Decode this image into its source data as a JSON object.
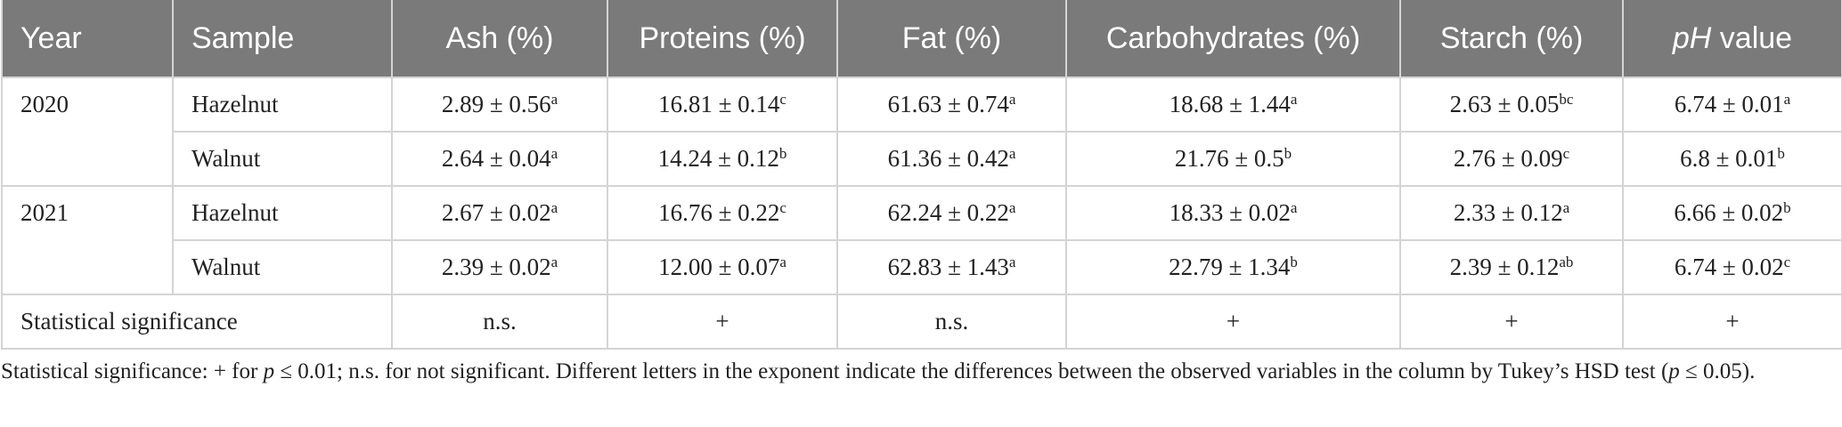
{
  "table": {
    "headers": {
      "year": "Year",
      "sample": "Sample",
      "ash": "Ash (%)",
      "proteins": "Proteins (%)",
      "fat": "Fat (%)",
      "carbohydrates": "Carbohydrates (%)",
      "starch": "Starch (%)",
      "ph_italic": "pH",
      "ph_rest": " value"
    },
    "groups": [
      {
        "year": "2020",
        "rows": [
          {
            "sample": "Hazelnut",
            "values": [
              {
                "v": "2.89 ± 0.56",
                "s": "a"
              },
              {
                "v": "16.81 ± 0.14",
                "s": "c"
              },
              {
                "v": "61.63 ± 0.74",
                "s": "a"
              },
              {
                "v": "18.68 ± 1.44",
                "s": "a"
              },
              {
                "v": "2.63 ± 0.05",
                "s": "bc"
              },
              {
                "v": "6.74 ± 0.01",
                "s": "a"
              }
            ]
          },
          {
            "sample": "Walnut",
            "values": [
              {
                "v": "2.64 ± 0.04",
                "s": "a"
              },
              {
                "v": "14.24 ± 0.12",
                "s": "b"
              },
              {
                "v": "61.36 ± 0.42",
                "s": "a"
              },
              {
                "v": "21.76 ± 0.5",
                "s": "b"
              },
              {
                "v": "2.76 ± 0.09",
                "s": "c"
              },
              {
                "v": "6.8 ± 0.01",
                "s": "b"
              }
            ]
          }
        ]
      },
      {
        "year": "2021",
        "rows": [
          {
            "sample": "Hazelnut",
            "values": [
              {
                "v": "2.67 ± 0.02",
                "s": "a"
              },
              {
                "v": "16.76 ± 0.22",
                "s": "c"
              },
              {
                "v": "62.24 ± 0.22",
                "s": "a"
              },
              {
                "v": "18.33 ± 0.02",
                "s": "a"
              },
              {
                "v": "2.33 ± 0.12",
                "s": "a"
              },
              {
                "v": "6.66 ± 0.02",
                "s": "b"
              }
            ]
          },
          {
            "sample": "Walnut",
            "values": [
              {
                "v": "2.39 ± 0.02",
                "s": "a"
              },
              {
                "v": "12.00 ± 0.07",
                "s": "a"
              },
              {
                "v": "62.83 ± 1.43",
                "s": "a"
              },
              {
                "v": "22.79 ± 1.34",
                "s": "b"
              },
              {
                "v": "2.39 ± 0.12",
                "s": "ab"
              },
              {
                "v": "6.74 ± 0.02",
                "s": "c"
              }
            ]
          }
        ]
      }
    ],
    "significance": {
      "label": "Statistical significance",
      "values": [
        "n.s.",
        "+",
        "n.s.",
        "+",
        "+",
        "+"
      ]
    }
  },
  "footnote": {
    "part1": "Statistical significance: + for ",
    "p1": "p",
    "part2": " ≤ 0.01; n.s. for not significant. Different letters in the exponent indicate the differences between the observed variables in the column by Tukey’s HSD test (",
    "p2": "p",
    "part3": " ≤ 0.05)."
  },
  "colors": {
    "header_bg": "#7a7a7a",
    "header_text": "#ffffff",
    "grid": "#d4d4d4",
    "text": "#222222"
  }
}
